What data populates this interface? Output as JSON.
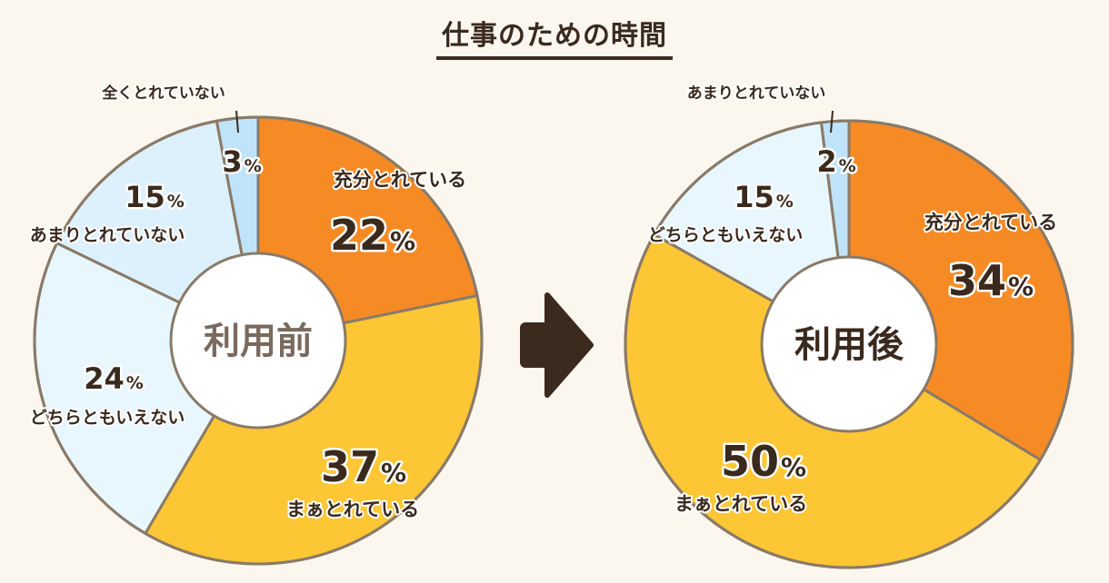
{
  "chart_data": [
    {
      "type": "pie",
      "title": "仕事のための時間",
      "center_label": "利用前",
      "slices": [
        {
          "label": "充分とれている",
          "value": 22,
          "color": "#f68b26"
        },
        {
          "label": "まぁとれている",
          "value": 37,
          "color": "#fdc634"
        },
        {
          "label": "どちらともいえない",
          "value": 24,
          "color": "#e8f6fe"
        },
        {
          "label": "あまりとれていない",
          "value": 15,
          "color": "#ddf1fc"
        },
        {
          "label": "全くとれていない",
          "value": 3,
          "color": "#bfe3f8"
        }
      ]
    },
    {
      "type": "pie",
      "center_label": "利用後",
      "slices": [
        {
          "label": "充分とれている",
          "value": 34,
          "color": "#f68b26"
        },
        {
          "label": "まぁとれている",
          "value": 50,
          "color": "#fdc634"
        },
        {
          "label": "どちらともいえない",
          "value": 15,
          "color": "#e8f6fe"
        },
        {
          "label": "あまりとれていない",
          "value": 2,
          "color": "#bfe3f8"
        }
      ]
    }
  ],
  "colors": {
    "ring_stroke": "#8a7a68",
    "arrow": "#3b2a1e",
    "text_dark": "#3a2a1e",
    "text_before_center": "#7a6a5e"
  }
}
